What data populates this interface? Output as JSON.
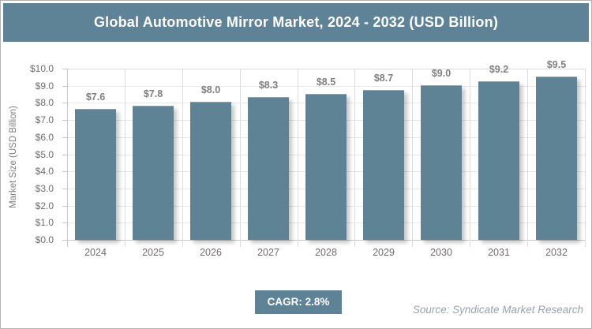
{
  "header": {
    "title": "Global Automotive Mirror Market, 2024 - 2032 (USD Billion)"
  },
  "chart_data": {
    "type": "bar",
    "title": "Global Automotive Mirror Market, 2024 - 2032 (USD Billion)",
    "categories": [
      "2024",
      "2025",
      "2026",
      "2027",
      "2028",
      "2029",
      "2030",
      "2031",
      "2032"
    ],
    "values": [
      7.6,
      7.8,
      8.0,
      8.3,
      8.5,
      8.7,
      9.0,
      9.2,
      9.5
    ],
    "bar_labels": [
      "$7.6",
      "$7.8",
      "$8.0",
      "$8.3",
      "$8.5",
      "$8.7",
      "$9.0",
      "$9.2",
      "$9.5"
    ],
    "xlabel": "",
    "ylabel": "Market Size (USD Billion)",
    "ylim": [
      0,
      10
    ],
    "ytick_step": 1,
    "ytick_labels": [
      "$10.0",
      "$9.0",
      "$8.0",
      "$7.0",
      "$6.0",
      "$5.0",
      "$4.0",
      "$3.0",
      "$2.0",
      "$1.0",
      "$0.0"
    ],
    "grid": true,
    "legend": "none",
    "bar_color": "#5e8394"
  },
  "footer": {
    "cagr_label": "CAGR: 2.8%",
    "source": "Source: Syndicate Market Research"
  },
  "colors": {
    "accent": "#5e8396",
    "grid_light": "#e6e6e6",
    "axis_line": "#c6c6c6",
    "tick_label": "#6d6d6d",
    "data_label": "#7f7f7f",
    "source_text": "#98a2aa",
    "border": "#b3b3b3"
  }
}
